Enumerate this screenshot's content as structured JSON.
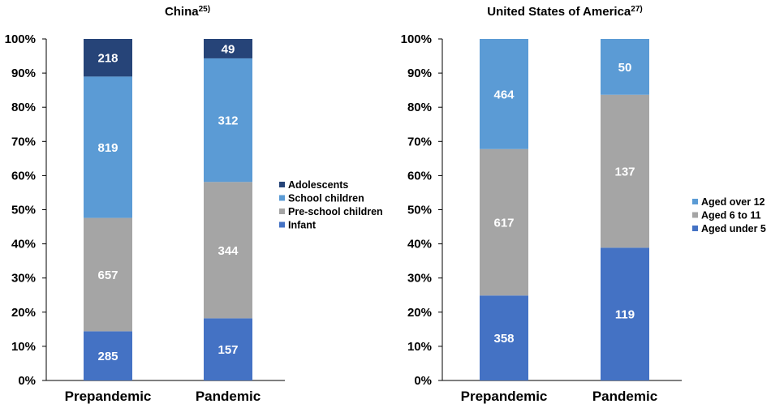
{
  "chart_data": [
    {
      "type": "bar",
      "stacked": true,
      "normalized": true,
      "title": "China",
      "title_sup": "25)",
      "categories": [
        "Prepandemic",
        "Pandemic"
      ],
      "y_ticks": [
        "0%",
        "10%",
        "20%",
        "30%",
        "40%",
        "50%",
        "60%",
        "70%",
        "80%",
        "90%",
        "100%"
      ],
      "ylim": [
        0,
        100
      ],
      "legend_position": "right",
      "series": [
        {
          "name": "Infant",
          "values": [
            285,
            157
          ],
          "color": "#4472c4"
        },
        {
          "name": "Pre-school children",
          "values": [
            657,
            344
          ],
          "color": "#a5a5a5"
        },
        {
          "name": "School children",
          "values": [
            819,
            312
          ],
          "color": "#5b9bd5"
        },
        {
          "name": "Adolescents",
          "values": [
            218,
            49
          ],
          "color": "#264478"
        }
      ]
    },
    {
      "type": "bar",
      "stacked": true,
      "normalized": true,
      "title": "United States of America",
      "title_sup": "27)",
      "categories": [
        "Prepandemic",
        "Pandemic"
      ],
      "y_ticks": [
        "0%",
        "10%",
        "20%",
        "30%",
        "40%",
        "50%",
        "60%",
        "70%",
        "80%",
        "90%",
        "100%"
      ],
      "ylim": [
        0,
        100
      ],
      "legend_position": "right",
      "series": [
        {
          "name": "Aged under 5",
          "values": [
            358,
            119
          ],
          "color": "#4472c4"
        },
        {
          "name": "Aged 6 to 11",
          "values": [
            617,
            137
          ],
          "color": "#a5a5a5"
        },
        {
          "name": "Aged over 12",
          "values": [
            464,
            50
          ],
          "color": "#5b9bd5"
        }
      ]
    }
  ]
}
